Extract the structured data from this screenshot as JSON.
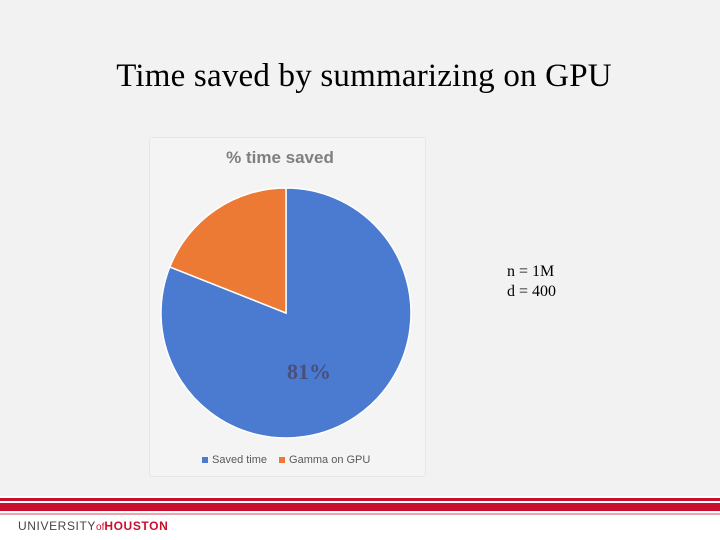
{
  "slide": {
    "title": "Time saved by summarizing on GPU",
    "annotation_lines": [
      "n = 1M",
      "d = 400"
    ],
    "footer_logo": {
      "part1": "UNIVERSITY",
      "part2": "of",
      "part3": "HOUSTON"
    }
  },
  "colors": {
    "saved": "#4a7bd1",
    "gamma": "#ec7a34",
    "brand_red": "#c8102e"
  },
  "chart_data": {
    "type": "pie",
    "title": "% time saved",
    "categories": [
      "Saved time",
      "Gamma on GPU"
    ],
    "values": [
      81,
      19
    ],
    "data_labels": [
      "81%"
    ],
    "legend_position": "bottom"
  }
}
